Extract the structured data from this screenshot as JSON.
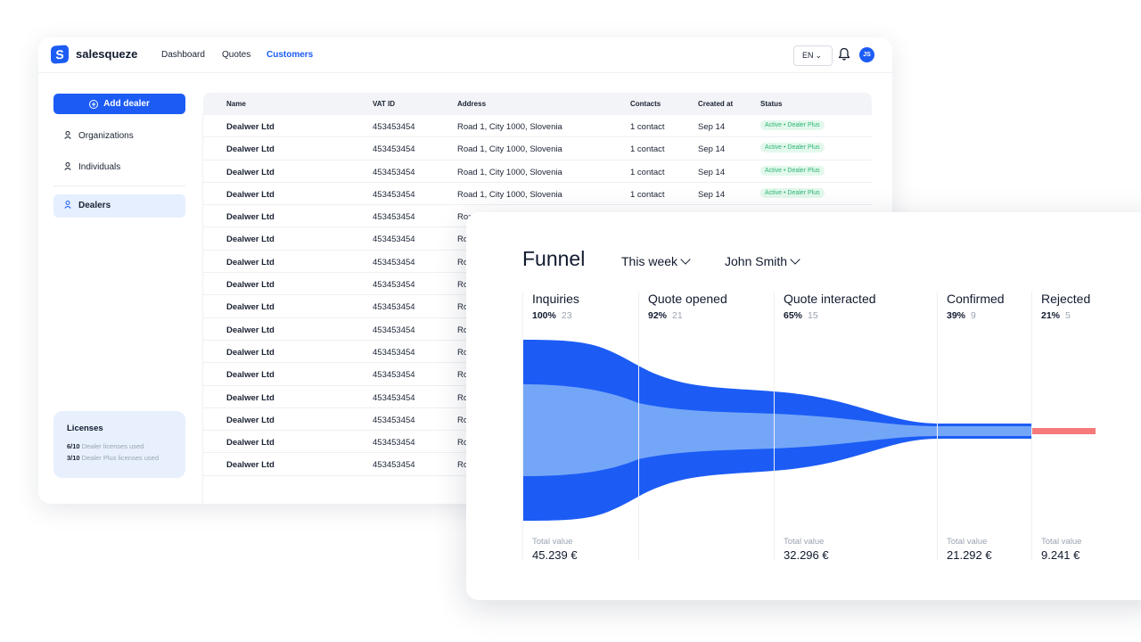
{
  "colors": {
    "accent": "#1c5cf5",
    "funnel_outer": "#1c5cf5",
    "funnel_inner": "#74a6f8",
    "rejected": "#f77a7a",
    "badge_text": "#2bb673"
  },
  "app": {
    "brand": "salesqueze",
    "logo_letter": "S",
    "nav": [
      "Dashboard",
      "Quotes",
      "Customers"
    ],
    "active_nav": "Customers",
    "language": "EN",
    "avatar_initials": "JS"
  },
  "sidebar": {
    "add_button": "Add dealer",
    "items": [
      {
        "label": "Organizations",
        "icon": "person-icon"
      },
      {
        "label": "Individuals",
        "icon": "person-icon"
      },
      {
        "label": "Dealers",
        "icon": "person-icon",
        "selected": true
      }
    ],
    "licenses": {
      "title": "Licenses",
      "lines": [
        {
          "count": "6/10",
          "text": "Dealer licenses used"
        },
        {
          "count": "3/10",
          "text": "Dealer Plus licenses used"
        }
      ]
    }
  },
  "table": {
    "headers": [
      "Name",
      "VAT ID",
      "Address",
      "Contacts",
      "Created at",
      "Status"
    ],
    "rows": [
      {
        "name": "Dealwer Ltd",
        "vat": "453453454",
        "address": "Road 1, City 1000, Slovenia",
        "contacts": "1 contact",
        "created": "Sep 14",
        "status": "Active • Dealer Plus"
      },
      {
        "name": "Dealwer Ltd",
        "vat": "453453454",
        "address": "Road 1, City 1000, Slovenia",
        "contacts": "1 contact",
        "created": "Sep 14",
        "status": "Active • Dealer Plus"
      },
      {
        "name": "Dealwer Ltd",
        "vat": "453453454",
        "address": "Road 1, City 1000, Slovenia",
        "contacts": "1 contact",
        "created": "Sep 14",
        "status": "Active • Dealer Plus"
      },
      {
        "name": "Dealwer Ltd",
        "vat": "453453454",
        "address": "Road 1, City 1000, Slovenia",
        "contacts": "1 contact",
        "created": "Sep 14",
        "status": "Active • Dealer Plus"
      },
      {
        "name": "Dealwer Ltd",
        "vat": "453453454",
        "address": "Road",
        "contacts": "",
        "created": "",
        "status": ""
      },
      {
        "name": "Dealwer Ltd",
        "vat": "453453454",
        "address": "Ro",
        "contacts": "",
        "created": "",
        "status": ""
      },
      {
        "name": "Dealwer Ltd",
        "vat": "453453454",
        "address": "Ro",
        "contacts": "",
        "created": "",
        "status": ""
      },
      {
        "name": "Dealwer Ltd",
        "vat": "453453454",
        "address": "Ro",
        "contacts": "",
        "created": "",
        "status": ""
      },
      {
        "name": "Dealwer Ltd",
        "vat": "453453454",
        "address": "Ro",
        "contacts": "",
        "created": "",
        "status": ""
      },
      {
        "name": "Dealwer Ltd",
        "vat": "453453454",
        "address": "Ro",
        "contacts": "",
        "created": "",
        "status": ""
      },
      {
        "name": "Dealwer Ltd",
        "vat": "453453454",
        "address": "Ro",
        "contacts": "",
        "created": "",
        "status": ""
      },
      {
        "name": "Dealwer Ltd",
        "vat": "453453454",
        "address": "Ro",
        "contacts": "",
        "created": "",
        "status": ""
      },
      {
        "name": "Dealwer Ltd",
        "vat": "453453454",
        "address": "Ro",
        "contacts": "",
        "created": "",
        "status": ""
      },
      {
        "name": "Dealwer Ltd",
        "vat": "453453454",
        "address": "Ro",
        "contacts": "",
        "created": "",
        "status": ""
      },
      {
        "name": "Dealwer Ltd",
        "vat": "453453454",
        "address": "Ro",
        "contacts": "",
        "created": "",
        "status": ""
      },
      {
        "name": "Dealwer Ltd",
        "vat": "453453454",
        "address": "Ro",
        "contacts": "",
        "created": "",
        "status": ""
      }
    ]
  },
  "funnel": {
    "title": "Funnel",
    "period": "This week",
    "user": "John Smith",
    "stages": [
      {
        "name": "Inquiries",
        "pct": "100%",
        "count": "23",
        "tv_label": "Total value",
        "tv": "45.239 €"
      },
      {
        "name": "Quote opened",
        "pct": "92%",
        "count": "21",
        "tv_label": "",
        "tv": ""
      },
      {
        "name": "Quote interacted",
        "pct": "65%",
        "count": "15",
        "tv_label": "Total value",
        "tv": "32.296 €"
      },
      {
        "name": "Confirmed",
        "pct": "39%",
        "count": "9",
        "tv_label": "Total value",
        "tv": "21.292 €"
      },
      {
        "name": "Rejected",
        "pct": "21%",
        "count": "5",
        "tv_label": "Total value",
        "tv": "9.241 €"
      }
    ]
  }
}
